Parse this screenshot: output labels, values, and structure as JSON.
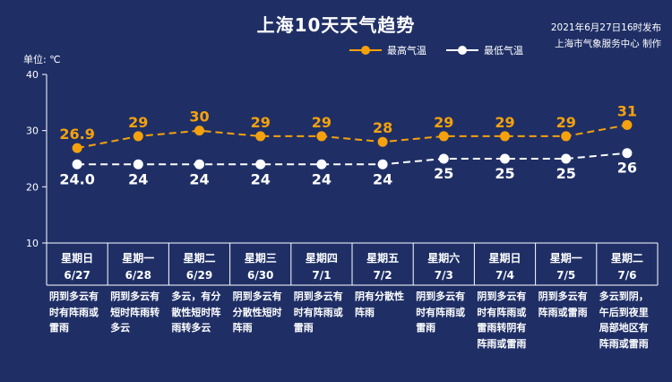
{
  "header": {
    "title": "上海10天天气趋势",
    "publish_time": "2021年6月27日16时发布",
    "publisher": "上海市气象服务中心 制作",
    "unit": "单位: ℃"
  },
  "colors": {
    "background": "#1f2f66",
    "high": "#f5a10d",
    "low": "#ffffff",
    "axis": "#ffffff"
  },
  "chart_data": {
    "type": "line",
    "title": "上海10天天气趋势",
    "ylabel": "单位: ℃",
    "ylim": [
      10,
      40
    ],
    "yticks": [
      "10",
      "20",
      "30",
      "40"
    ],
    "days": [
      {
        "weekday": "星期日",
        "date": "6/27",
        "desc": "阴到多云有\n时有阵雨或\n雷雨"
      },
      {
        "weekday": "星期一",
        "date": "6/28",
        "desc": "阴到多云有\n短时阵雨转\n多云"
      },
      {
        "weekday": "星期二",
        "date": "6/29",
        "desc": "多云，有分\n散性短时阵\n雨转多云"
      },
      {
        "weekday": "星期三",
        "date": "6/30",
        "desc": "阴到多云有\n分散性短时\n阵雨"
      },
      {
        "weekday": "星期四",
        "date": "7/1",
        "desc": "阴到多云有\n时有阵雨或\n雷雨"
      },
      {
        "weekday": "星期五",
        "date": "7/2",
        "desc": "阴有分散性\n阵雨"
      },
      {
        "weekday": "星期六",
        "date": "7/3",
        "desc": "阴到多云有\n时有阵雨或\n雷雨"
      },
      {
        "weekday": "星期日",
        "date": "7/4",
        "desc": "阴到多云有\n时有阵雨或\n雷雨转阴有\n阵雨或雷雨"
      },
      {
        "weekday": "星期一",
        "date": "7/5",
        "desc": "阴到多云有\n阵雨或雷雨"
      },
      {
        "weekday": "星期二",
        "date": "7/6",
        "desc": "多云到阴，\n午后到夜里\n局部地区有\n阵雨或雷雨"
      }
    ],
    "series": [
      {
        "name": "最高气温",
        "values": [
          26.9,
          29,
          30,
          29,
          29,
          28,
          29,
          29,
          29,
          31
        ],
        "labels": [
          "26.9",
          "29",
          "30",
          "29",
          "29",
          "28",
          "29",
          "29",
          "29",
          "31"
        ]
      },
      {
        "name": "最低气温",
        "values": [
          24.0,
          24,
          24,
          24,
          24,
          24,
          25,
          25,
          25,
          26
        ],
        "labels": [
          "24.0",
          "24",
          "24",
          "24",
          "24",
          "24",
          "25",
          "25",
          "25",
          "26"
        ]
      }
    ],
    "legend_position": "top-right",
    "grid": false
  }
}
